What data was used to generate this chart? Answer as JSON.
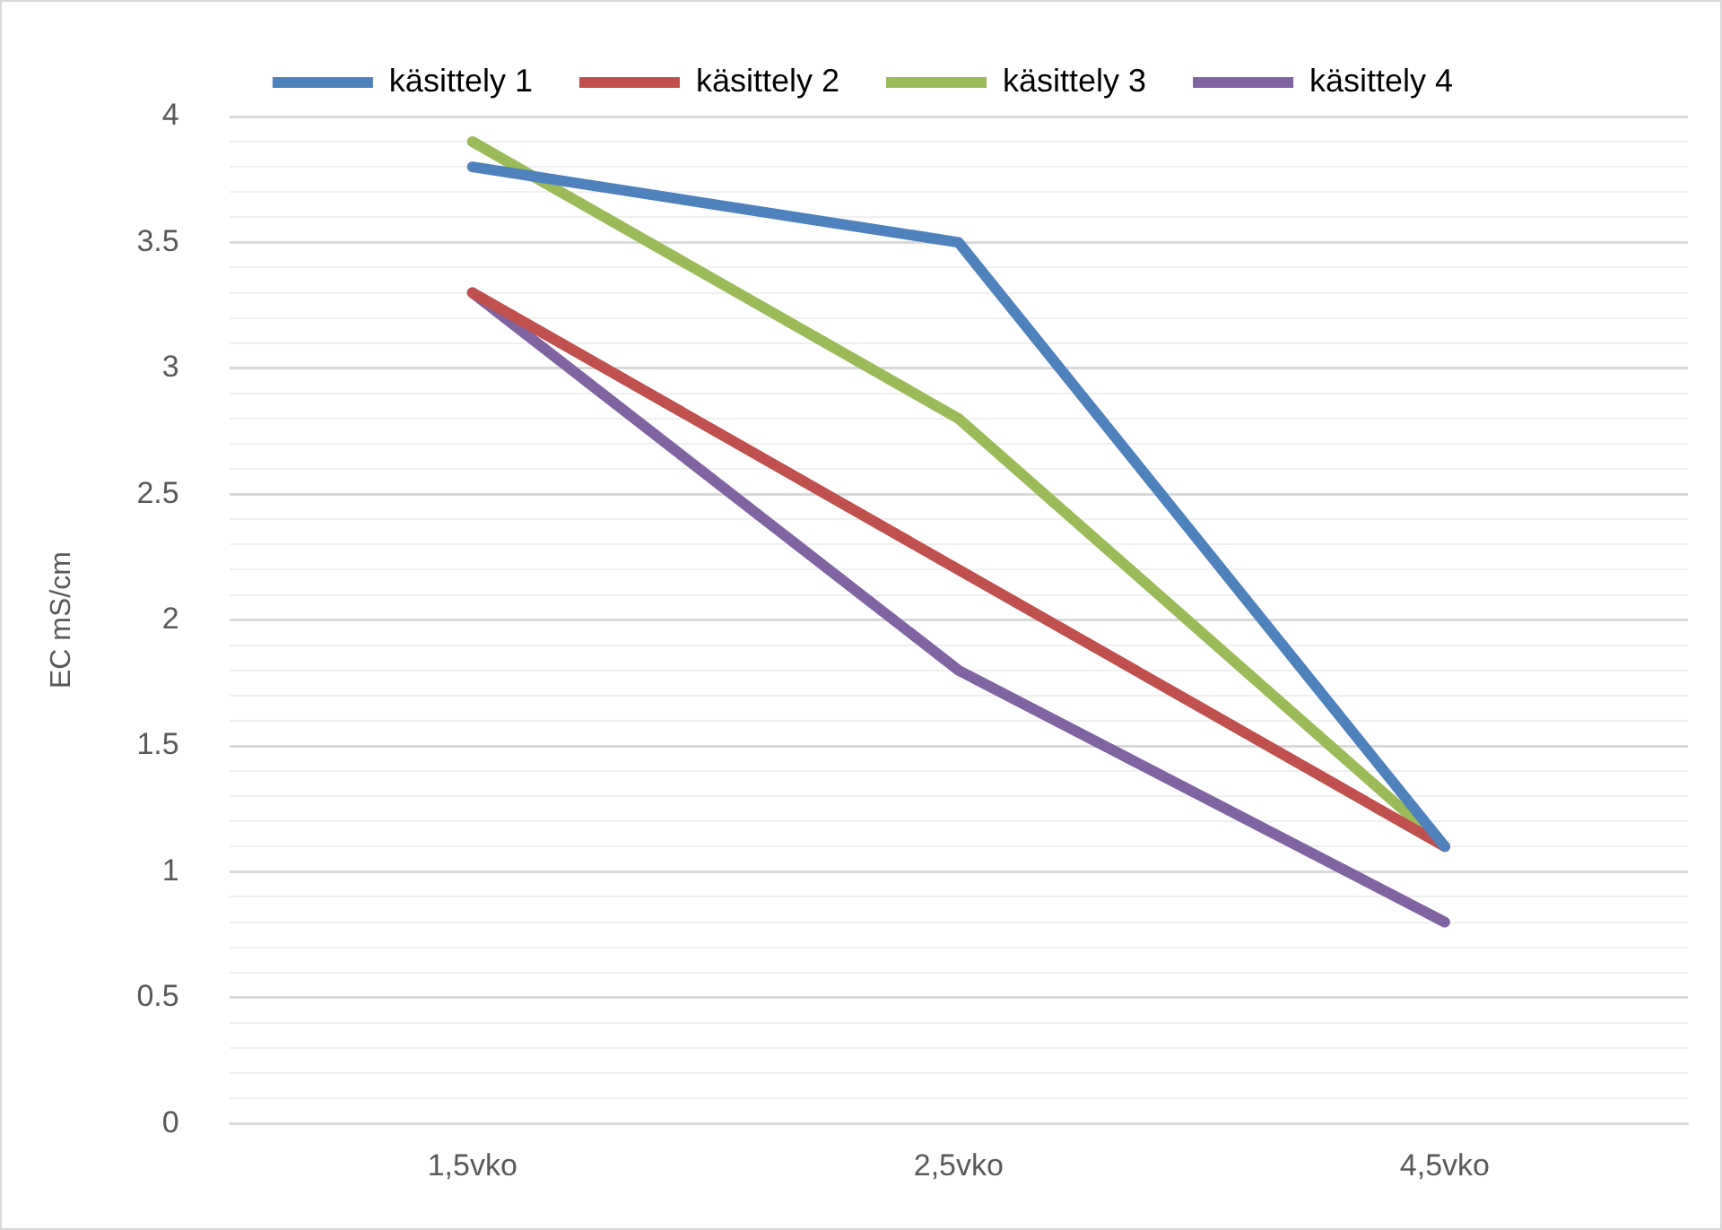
{
  "chart_data": {
    "type": "line",
    "ylabel": "EC mS/cm",
    "categories": [
      "1,5vko",
      "2,5vko",
      "4,5vko"
    ],
    "series": [
      {
        "name": "käsittely 1",
        "color": "#4f81bd",
        "values": [
          3.8,
          3.5,
          1.1
        ]
      },
      {
        "name": "käsittely 2",
        "color": "#c0504d",
        "values": [
          3.3,
          2.2,
          1.1
        ]
      },
      {
        "name": "käsittely 3",
        "color": "#9bbb59",
        "values": [
          3.9,
          2.8,
          1.1
        ]
      },
      {
        "name": "käsittely 4",
        "color": "#8064a2",
        "values": [
          3.3,
          1.8,
          0.8
        ]
      }
    ],
    "ylim": [
      0,
      4
    ],
    "yticks": [
      0,
      {
        "value": 0.1,
        "label": null
      },
      {
        "value": 0.2,
        "label": null
      },
      {
        "value": 0.3,
        "label": null
      },
      {
        "value": 0.4,
        "label": null
      },
      0.5,
      {
        "value": 0.6,
        "label": null
      },
      {
        "value": 0.7,
        "label": null
      },
      {
        "value": 0.8,
        "label": null
      },
      {
        "value": 0.9,
        "label": null
      },
      1,
      {
        "value": 1.1,
        "label": null
      },
      {
        "value": 1.2,
        "label": null
      },
      {
        "value": 1.3,
        "label": null
      },
      {
        "value": 1.4,
        "label": null
      },
      1.5,
      {
        "value": 1.6,
        "label": null
      },
      {
        "value": 1.7,
        "label": null
      },
      {
        "value": 1.8,
        "label": null
      },
      {
        "value": 1.9,
        "label": null
      },
      2,
      {
        "value": 2.1,
        "label": null
      },
      {
        "value": 2.2,
        "label": null
      },
      {
        "value": 2.3,
        "label": null
      },
      {
        "value": 2.4,
        "label": null
      },
      2.5,
      {
        "value": 2.6,
        "label": null
      },
      {
        "value": 2.7,
        "label": null
      },
      {
        "value": 2.8,
        "label": null
      },
      {
        "value": 2.9,
        "label": null
      },
      3,
      {
        "value": 3.1,
        "label": null
      },
      {
        "value": 3.2,
        "label": null
      },
      {
        "value": 3.3,
        "label": null
      },
      {
        "value": 3.4,
        "label": null
      },
      3.5,
      {
        "value": 3.6,
        "label": null
      },
      {
        "value": 3.7,
        "label": null
      },
      {
        "value": 3.8,
        "label": null
      },
      {
        "value": 3.9,
        "label": null
      },
      4
    ],
    "grid": "y",
    "legend": "top",
    "marker": "none",
    "line_style": "solid"
  }
}
